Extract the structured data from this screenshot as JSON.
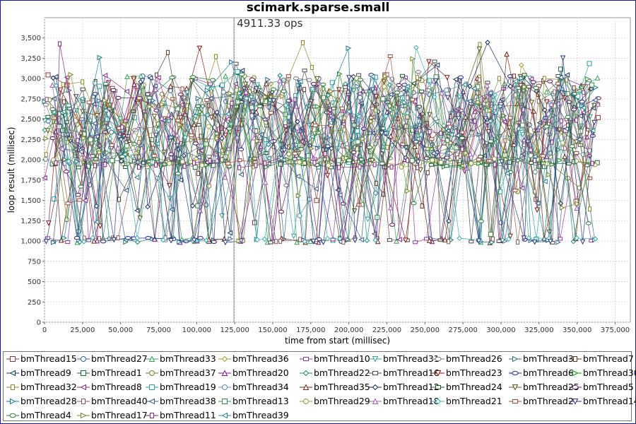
{
  "chart_data": {
    "type": "scatter",
    "title": "scimark.sparse.small",
    "annotation": "4911.33 ops",
    "marker_x": 124500,
    "xlabel": "time from start (millisec)",
    "ylabel": "loop result (millisec)",
    "xlim": [
      0,
      385000
    ],
    "ylim": [
      0,
      3750
    ],
    "xticks": [
      0,
      25000,
      50000,
      75000,
      100000,
      125000,
      150000,
      175000,
      200000,
      225000,
      250000,
      275000,
      300000,
      325000,
      350000,
      375000
    ],
    "xtick_labels": [
      "0",
      "25,000",
      "50,000",
      "75,000",
      "100,000",
      "125,000",
      "150,000",
      "175,000",
      "200,000",
      "225,000",
      "250,000",
      "275,000",
      "300,000",
      "325,000",
      "350,000",
      "375,000"
    ],
    "yticks": [
      0,
      250,
      500,
      750,
      1000,
      1250,
      1500,
      1750,
      2000,
      2250,
      2500,
      2750,
      3000,
      3250,
      3500
    ],
    "ytick_labels": [
      "0",
      "250",
      "500",
      "750",
      "1,000",
      "1,250",
      "1,500",
      "1,750",
      "2,000",
      "2,250",
      "2,500",
      "2,750",
      "3,000",
      "3,250",
      "3,500"
    ],
    "grid": true,
    "legend_position": "bottom",
    "data_range": {
      "x_end": 366000,
      "typical_y_low": 1000,
      "typical_y_high": 3000,
      "peak_y": 3550
    },
    "series": [
      {
        "name": "bmThread15",
        "color": "#8b3a3a",
        "marker": "square"
      },
      {
        "name": "bmThread27",
        "color": "#3a5fa0",
        "marker": "circle"
      },
      {
        "name": "bmThread33",
        "color": "#3aa05a",
        "marker": "triangle-up"
      },
      {
        "name": "bmThread36",
        "color": "#a0a03a",
        "marker": "diamond"
      },
      {
        "name": "bmThread10",
        "color": "#8a3aa0",
        "marker": "square-h"
      },
      {
        "name": "bmThread31",
        "color": "#3aa0a0",
        "marker": "triangle-down"
      },
      {
        "name": "bmThread26",
        "color": "#7a7a7a",
        "marker": "circle-h"
      },
      {
        "name": "bmThread3",
        "color": "#3a6a8a",
        "marker": "triangle-right"
      },
      {
        "name": "bmThread7",
        "color": "#5a3a2a",
        "marker": "square-v"
      },
      {
        "name": "bmThread9",
        "color": "#1a3a6a",
        "marker": "triangle-left"
      },
      {
        "name": "bmThread1",
        "color": "#1a6a3a",
        "marker": "square"
      },
      {
        "name": "bmThread37",
        "color": "#6a8a1a",
        "marker": "circle"
      },
      {
        "name": "bmThread20",
        "color": "#7a1a8a",
        "marker": "triangle-up"
      },
      {
        "name": "bmThread22",
        "color": "#1a8a7a",
        "marker": "diamond"
      },
      {
        "name": "bmThread16",
        "color": "#4a4a4a",
        "marker": "square-h"
      },
      {
        "name": "bmThread23",
        "color": "#8a1a1a",
        "marker": "triangle-down"
      },
      {
        "name": "bmThread6",
        "color": "#2a2a8a",
        "marker": "circle-h"
      },
      {
        "name": "bmThread30",
        "color": "#2a8a2a",
        "marker": "triangle-right"
      },
      {
        "name": "bmThread32",
        "color": "#8a8a2a",
        "marker": "square-v"
      },
      {
        "name": "bmThread8",
        "color": "#8a2a8a",
        "marker": "triangle-left"
      },
      {
        "name": "bmThread19",
        "color": "#2aa0a0",
        "marker": "square"
      },
      {
        "name": "bmThread34",
        "color": "#5a8aa0",
        "marker": "circle"
      },
      {
        "name": "bmThread35",
        "color": "#6a2a1a",
        "marker": "triangle-up"
      },
      {
        "name": "bmThread12",
        "color": "#1a2a5a",
        "marker": "diamond"
      },
      {
        "name": "bmThread24",
        "color": "#1a5a2a",
        "marker": "square-h"
      },
      {
        "name": "bmThread25",
        "color": "#5a5a1a",
        "marker": "triangle-down"
      },
      {
        "name": "bmThread5",
        "color": "#5a1a5a",
        "marker": "circle-h"
      },
      {
        "name": "bmThread28",
        "color": "#1a7a8a",
        "marker": "triangle-right"
      },
      {
        "name": "bmThread40",
        "color": "#8a5a5a",
        "marker": "square-v"
      },
      {
        "name": "bmThread38",
        "color": "#3a5a8a",
        "marker": "triangle-left"
      },
      {
        "name": "bmThread13",
        "color": "#3a8a4a",
        "marker": "square"
      },
      {
        "name": "bmThread29",
        "color": "#8aa03a",
        "marker": "circle"
      },
      {
        "name": "bmThread18",
        "color": "#a05ab0",
        "marker": "triangle-up"
      },
      {
        "name": "bmThread21",
        "color": "#3ab0b0",
        "marker": "diamond"
      },
      {
        "name": "bmThread2",
        "color": "#a04a3a",
        "marker": "square-h"
      },
      {
        "name": "bmThread14",
        "color": "#2a3a7a",
        "marker": "triangle-down"
      },
      {
        "name": "bmThread4",
        "color": "#2a7a3a",
        "marker": "circle-h"
      },
      {
        "name": "bmThread17",
        "color": "#7a8a2a",
        "marker": "triangle-right"
      },
      {
        "name": "bmThread11",
        "color": "#7a2a7a",
        "marker": "square-v"
      },
      {
        "name": "bmThread39",
        "color": "#2a8a8a",
        "marker": "triangle-left"
      }
    ]
  }
}
